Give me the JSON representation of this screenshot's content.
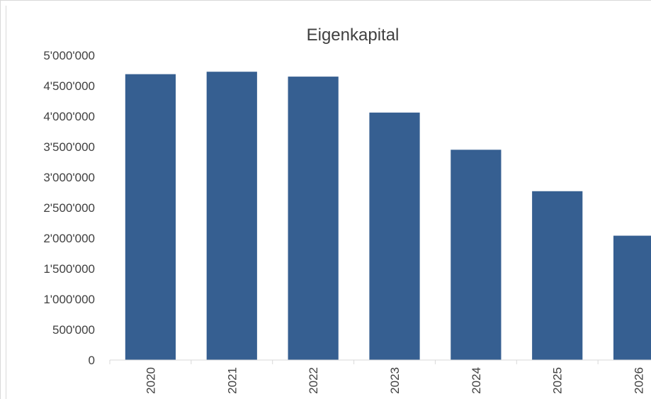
{
  "chart_data": {
    "type": "bar",
    "title": "Eigenkapital",
    "xlabel": "",
    "ylabel": "",
    "categories": [
      "2020",
      "2021",
      "2022",
      "2023",
      "2024",
      "2025",
      "2026"
    ],
    "values": [
      4690000,
      4730000,
      4650000,
      4060000,
      3450000,
      2770000,
      2040000
    ],
    "ylim": [
      0,
      5000000
    ],
    "yticks": [
      "0",
      "500'000",
      "1'000'000",
      "1'500'000",
      "2'000'000",
      "2'500'000",
      "3'000'000",
      "3'500'000",
      "4'000'000",
      "4'500'000",
      "5'000'000"
    ],
    "bar_color": "#365f91",
    "grid": false,
    "legend": "none"
  }
}
